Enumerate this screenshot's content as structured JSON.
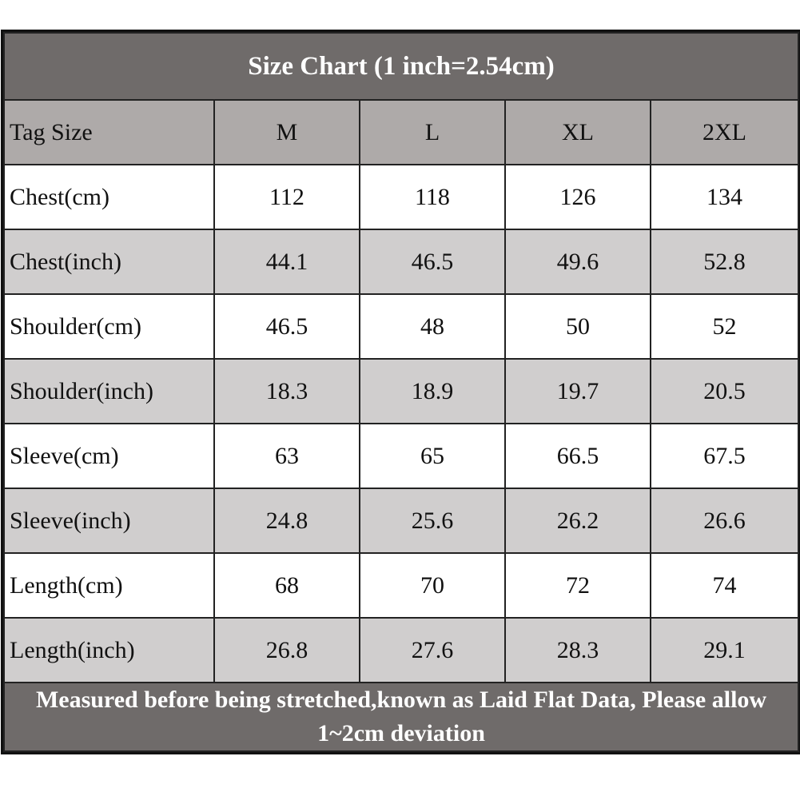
{
  "title": "Size Chart (1 inch=2.54cm)",
  "header": {
    "label": "Tag Size",
    "sizes": [
      "M",
      "L",
      "XL",
      "2XL"
    ]
  },
  "rows": [
    {
      "label": "Chest(cm)",
      "values": [
        "112",
        "118",
        "126",
        "134"
      ]
    },
    {
      "label": "Chest(inch)",
      "values": [
        "44.1",
        "46.5",
        "49.6",
        "52.8"
      ]
    },
    {
      "label": "Shoulder(cm)",
      "values": [
        "46.5",
        "48",
        "50",
        "52"
      ]
    },
    {
      "label": "Shoulder(inch)",
      "values": [
        "18.3",
        "18.9",
        "19.7",
        "20.5"
      ]
    },
    {
      "label": "Sleeve(cm)",
      "values": [
        "63",
        "65",
        "66.5",
        "67.5"
      ]
    },
    {
      "label": "Sleeve(inch)",
      "values": [
        "24.8",
        "25.6",
        "26.2",
        "26.6"
      ]
    },
    {
      "label": "Length(cm)",
      "values": [
        "68",
        "70",
        "72",
        "74"
      ]
    },
    {
      "label": "Length(inch)",
      "values": [
        "26.8",
        "27.6",
        "28.3",
        "29.1"
      ]
    }
  ],
  "footer": "Measured before being stretched,known as Laid Flat Data, Please allow 1~2cm deviation",
  "colors": {
    "title_bg": "#6f6b6a",
    "header_bg": "#aeaaa9",
    "stripe_bg": "#d0cece",
    "row_bg": "#ffffff"
  }
}
